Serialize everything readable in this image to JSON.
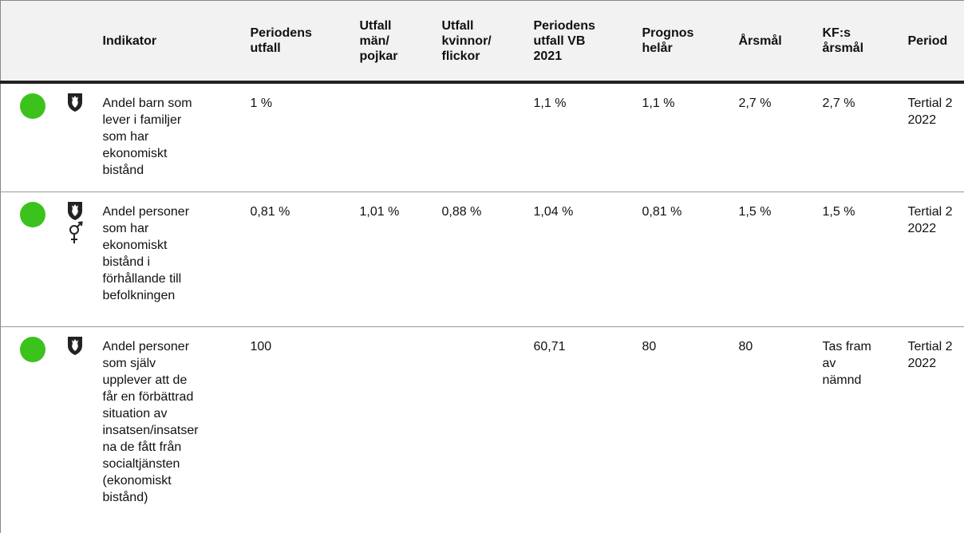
{
  "table": {
    "header": [
      "Indikator",
      "Periodens utfall",
      "Utfall män/ pojkar",
      "Utfall kvinnor/ flickor",
      "Periodens utfall VB 2021",
      "Prognos helår",
      "Årsmål",
      "KF:s årsmål",
      "Period"
    ],
    "rows": [
      {
        "0": "Andel barn som lever i familjer som har ekonomiskt bistånd",
        "1": "1 %",
        "4": "1,1 %",
        "5": "1,1 %",
        "6": "2,7 %",
        "7": "2,7 %",
        "8": "Tertial 2 2022"
      },
      {
        "0": "Andel personer som har ekonomiskt bistånd i förhållande till befolkningen",
        "1": "0,81 %",
        "2": "1,01 %",
        "3": "0,88 %",
        "4": "1,04 %",
        "5": "0,81 %",
        "6": "1,5 %",
        "7": "1,5 %",
        "8": "Tertial 2 2022"
      },
      {
        "0": "Andel personer som själv upplever att de får en förbättrad situation av insatsen/insatserna de fått från socialtjänsten (ekonomiskt bistånd)",
        "1": "100",
        "4": "60,71",
        "5": "80",
        "6": "80",
        "7": "Tas fram av nämnd",
        "8": "Tertial 2 2022"
      }
    ]
  }
}
